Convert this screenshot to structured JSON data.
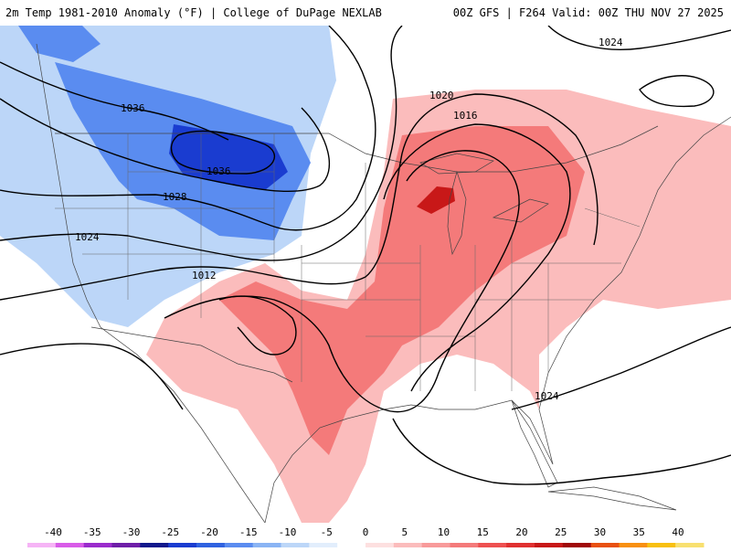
{
  "header": {
    "title": "2m Temp 1981-2010 Anomaly (°F) | College of DuPage NEXLAB",
    "run_info": "00Z GFS | F264 Valid: 00Z THU NOV 27 2025"
  },
  "isobar_labels": [
    "1036",
    "1036",
    "1028",
    "1024",
    "1012",
    "1020",
    "1016",
    "1024",
    "1024"
  ],
  "colorbar": {
    "ticks": [
      "-40",
      "-35",
      "-30",
      "-25",
      "-20",
      "-15",
      "-10",
      "-5",
      "0",
      "5",
      "10",
      "15",
      "20",
      "25",
      "30",
      "35",
      "40"
    ],
    "colors": [
      "#f6b4f6",
      "#d85ce8",
      "#9a2bcc",
      "#6e1ea8",
      "#10188c",
      "#1a3cd0",
      "#2f62e0",
      "#5a8cf0",
      "#8ab4f4",
      "#bcd6f8",
      "#e2eefc",
      "#ffffff",
      "#fde0e0",
      "#fbbcbc",
      "#f89a9a",
      "#f47a7a",
      "#ee5050",
      "#e03030",
      "#c81818",
      "#a00808",
      "#e85010",
      "#f89010",
      "#f8c010",
      "#f8e070"
    ]
  },
  "anomaly_colors": {
    "strong_cold": "#1a3cd0",
    "cold": "#5a8cf0",
    "cool": "#bcd6f8",
    "mild_warm": "#fbbcbc",
    "warm": "#f47a7a",
    "strong_warm": "#c81818"
  }
}
